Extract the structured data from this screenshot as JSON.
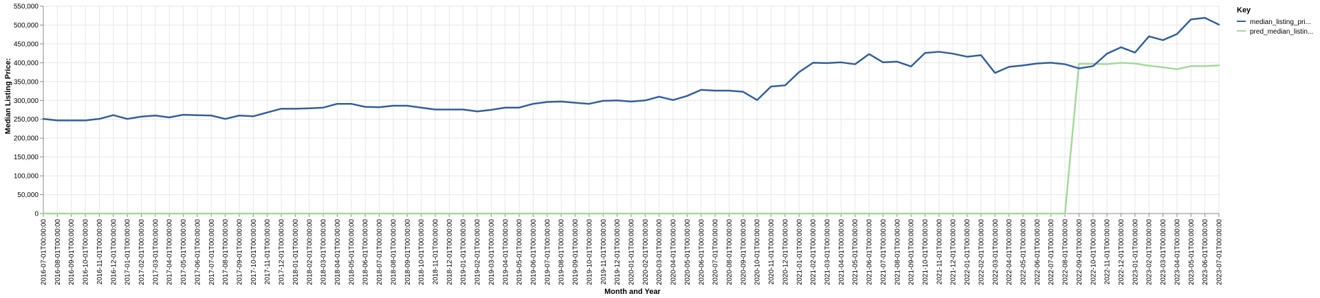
{
  "chart_data": {
    "type": "line",
    "xlabel": "Month and Year",
    "ylabel": "Median Listing Price:",
    "ylim": [
      0,
      550000
    ],
    "yticks": [
      "0",
      "50,000",
      "100,000",
      "150,000",
      "200,000",
      "250,000",
      "300,000",
      "350,000",
      "400,000",
      "450,000",
      "500,000",
      "550,000"
    ],
    "grid": true,
    "legend": {
      "title": "Key",
      "placement": "right",
      "entries": [
        "median_listing_pri...",
        "pred_median_listin..."
      ]
    },
    "colors": {
      "median": "#2f5fa0",
      "pred": "#a3da9a",
      "grid": "#e6e6e6",
      "axis": "#888888"
    },
    "x": [
      "2016-07-01T00:00:00",
      "2016-08-01T00:00:00",
      "2016-09-01T00:00:00",
      "2016-10-01T00:00:00",
      "2016-11-01T00:00:00",
      "2016-12-01T00:00:00",
      "2017-01-01T00:00:00",
      "2017-02-01T00:00:00",
      "2017-03-01T00:00:00",
      "2017-04-01T00:00:00",
      "2017-05-01T00:00:00",
      "2017-06-01T00:00:00",
      "2017-07-01T00:00:00",
      "2017-08-01T00:00:00",
      "2017-09-01T00:00:00",
      "2017-10-01T00:00:00",
      "2017-11-01T00:00:00",
      "2017-12-01T00:00:00",
      "2018-01-01T00:00:00",
      "2018-02-01T00:00:00",
      "2018-03-01T00:00:00",
      "2018-04-01T00:00:00",
      "2018-05-01T00:00:00",
      "2018-06-01T00:00:00",
      "2018-07-01T00:00:00",
      "2018-08-01T00:00:00",
      "2018-09-01T00:00:00",
      "2018-10-01T00:00:00",
      "2018-11-01T00:00:00",
      "2018-12-01T00:00:00",
      "2019-01-01T00:00:00",
      "2019-02-01T00:00:00",
      "2019-03-01T00:00:00",
      "2019-04-01T00:00:00",
      "2019-05-01T00:00:00",
      "2019-06-01T00:00:00",
      "2019-07-01T00:00:00",
      "2019-08-01T00:00:00",
      "2019-09-01T00:00:00",
      "2019-10-01T00:00:00",
      "2019-11-01T00:00:00",
      "2019-12-01T00:00:00",
      "2020-01-01T00:00:00",
      "2020-02-01T00:00:00",
      "2020-03-01T00:00:00",
      "2020-04-01T00:00:00",
      "2020-05-01T00:00:00",
      "2020-06-01T00:00:00",
      "2020-07-01T00:00:00",
      "2020-08-01T00:00:00",
      "2020-09-01T00:00:00",
      "2020-10-01T00:00:00",
      "2020-11-01T00:00:00",
      "2020-12-01T00:00:00",
      "2021-01-01T00:00:00",
      "2021-02-01T00:00:00",
      "2021-03-01T00:00:00",
      "2021-04-01T00:00:00",
      "2021-05-01T00:00:00",
      "2021-06-01T00:00:00",
      "2021-07-01T00:00:00",
      "2021-08-01T00:00:00",
      "2021-09-01T00:00:00",
      "2021-10-01T00:00:00",
      "2021-11-01T00:00:00",
      "2021-12-01T00:00:00",
      "2022-01-01T00:00:00",
      "2022-02-01T00:00:00",
      "2022-03-01T00:00:00",
      "2022-04-01T00:00:00",
      "2022-05-01T00:00:00",
      "2022-06-01T00:00:00",
      "2022-07-01T00:00:00",
      "2022-08-01T00:00:00",
      "2022-09-01T00:00:00",
      "2022-10-01T00:00:00",
      "2022-11-01T00:00:00",
      "2022-12-01T00:00:00",
      "2023-01-01T00:00:00",
      "2023-02-01T00:00:00",
      "2023-03-01T00:00:00",
      "2023-04-01T00:00:00",
      "2023-05-01T00:00:00",
      "2023-06-01T00:00:00",
      "2023-07-01T00:00:00"
    ],
    "series": [
      {
        "name": "median_listing_pri...",
        "values": [
          251000,
          247000,
          247000,
          247000,
          251000,
          261000,
          251000,
          257000,
          260000,
          255000,
          262000,
          261000,
          260000,
          251000,
          260000,
          258000,
          268000,
          278000,
          278000,
          279000,
          281000,
          291000,
          291000,
          283000,
          282000,
          286000,
          286000,
          281000,
          276000,
          276000,
          276000,
          271000,
          275000,
          281000,
          281000,
          291000,
          296000,
          297000,
          294000,
          291000,
          299000,
          300000,
          297000,
          300000,
          310000,
          301000,
          312000,
          328000,
          326000,
          326000,
          323000,
          301000,
          337000,
          340000,
          375000,
          400000,
          399000,
          401000,
          396000,
          423000,
          401000,
          403000,
          390000,
          426000,
          429000,
          424000,
          416000,
          420000,
          373000,
          389000,
          393000,
          398000,
          400000,
          396000,
          385000,
          391000,
          424000,
          441000,
          427000,
          470000,
          460000,
          476000,
          515000,
          519000,
          501000
        ]
      },
      {
        "name": "pred_median_listin...",
        "values": [
          0,
          0,
          0,
          0,
          0,
          0,
          0,
          0,
          0,
          0,
          0,
          0,
          0,
          0,
          0,
          0,
          0,
          0,
          0,
          0,
          0,
          0,
          0,
          0,
          0,
          0,
          0,
          0,
          0,
          0,
          0,
          0,
          0,
          0,
          0,
          0,
          0,
          0,
          0,
          0,
          0,
          0,
          0,
          0,
          0,
          0,
          0,
          0,
          0,
          0,
          0,
          0,
          0,
          0,
          0,
          0,
          0,
          0,
          0,
          0,
          0,
          0,
          0,
          0,
          0,
          0,
          0,
          0,
          0,
          0,
          0,
          0,
          0,
          0,
          397000,
          397000,
          396000,
          400000,
          398000,
          392000,
          388000,
          383000,
          391000,
          391000,
          393000
        ]
      }
    ]
  }
}
